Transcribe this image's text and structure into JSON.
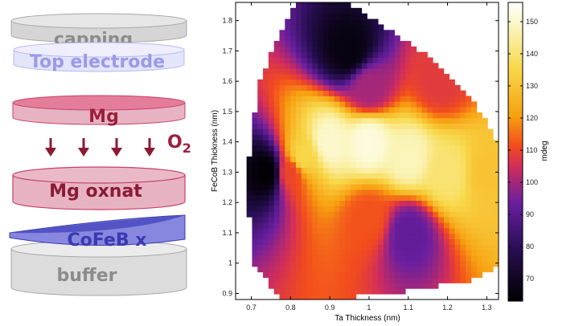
{
  "stack": {
    "capping": "capping",
    "top_electrode": "Top electrode",
    "mg": "Mg",
    "o2_base": "O",
    "o2_sub": "2",
    "mg_oxnat": "Mg oxnat",
    "cofeb": "CoFeB x",
    "buffer": "buffer",
    "colors": {
      "gray_layer": "#d9d9d9",
      "gray_text": "#8c8c8c",
      "top_electrode_fill": "#dcdcf7",
      "top_electrode_text": "#9a9ae8",
      "mg_fill": "#e8a0b6",
      "mg_text": "#9c1f3e",
      "arrow": "#8b1a33",
      "cofeb_fill": "#6e6ed6",
      "cofeb_text": "#3a3ab0"
    }
  },
  "chart_data": {
    "type": "heatmap",
    "title": "",
    "xlabel": "Ta Thickness (nm)",
    "ylabel": "FeCoB Thickness (nm)",
    "colorbar_label": "mdeg",
    "xlim": [
      0.66,
      1.33
    ],
    "ylim": [
      0.88,
      1.86
    ],
    "xticks": [
      "0.7",
      "0.8",
      "0.9",
      "1",
      "1.1",
      "1.2",
      "1.3"
    ],
    "yticks": [
      "0.9",
      "1",
      "1.1",
      "1.2",
      "1.3",
      "1.4",
      "1.5",
      "1.6",
      "1.7",
      "1.8"
    ],
    "zlim": [
      63,
      156
    ],
    "colorbar_ticks": [
      "70",
      "80",
      "90",
      "100",
      "110",
      "120",
      "130",
      "140",
      "150"
    ],
    "colormap": "hot-purple (black-purple-red-orange-yellow-white)",
    "grid": false,
    "region_boundary": [
      [
        0.78,
        0.88
      ],
      [
        0.7,
        1.0
      ],
      [
        0.69,
        1.3
      ],
      [
        0.72,
        1.6
      ],
      [
        0.79,
        1.8
      ],
      [
        0.81,
        1.86
      ],
      [
        0.94,
        1.86
      ],
      [
        1.02,
        1.8
      ],
      [
        1.15,
        1.68
      ],
      [
        1.26,
        1.55
      ],
      [
        1.33,
        1.4
      ],
      [
        1.33,
        1.0
      ],
      [
        1.28,
        0.95
      ],
      [
        1.2,
        0.93
      ],
      [
        1.05,
        0.9
      ],
      [
        0.9,
        0.88
      ]
    ],
    "signal_summary": [
      {
        "x": 0.74,
        "y": 1.3,
        "z": 64
      },
      {
        "x": 0.8,
        "y": 1.3,
        "z": 110
      },
      {
        "x": 0.83,
        "y": 1.35,
        "z": 135
      },
      {
        "x": 0.9,
        "y": 1.4,
        "z": 150
      },
      {
        "x": 1.0,
        "y": 1.4,
        "z": 152
      },
      {
        "x": 1.1,
        "y": 1.35,
        "z": 148
      },
      {
        "x": 1.2,
        "y": 1.3,
        "z": 140
      },
      {
        "x": 1.3,
        "y": 1.3,
        "z": 130
      },
      {
        "x": 1.0,
        "y": 1.15,
        "z": 112
      },
      {
        "x": 1.1,
        "y": 1.1,
        "z": 92
      },
      {
        "x": 1.0,
        "y": 1.58,
        "z": 100
      },
      {
        "x": 1.18,
        "y": 1.6,
        "z": 108
      },
      {
        "x": 0.95,
        "y": 1.7,
        "z": 66
      }
    ]
  }
}
